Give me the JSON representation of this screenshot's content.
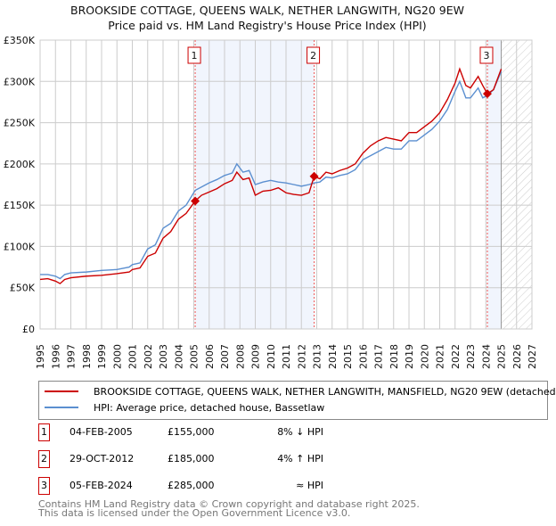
{
  "chart_data": {
    "type": "line",
    "title": "BROOKSIDE COTTAGE, QUEENS WALK, NETHER LANGWITH, NG20 9EW",
    "subtitle": "Price paid vs. HM Land Registry's House Price Index (HPI)",
    "xlim": [
      1995,
      2027
    ],
    "ylim": [
      0,
      350000
    ],
    "x_ticks": [
      "1995",
      "1996",
      "1997",
      "1998",
      "1999",
      "2000",
      "2001",
      "2002",
      "2003",
      "2004",
      "2005",
      "2006",
      "2007",
      "2008",
      "2009",
      "2010",
      "2011",
      "2012",
      "2013",
      "2014",
      "2015",
      "2016",
      "2017",
      "2018",
      "2019",
      "2020",
      "2021",
      "2022",
      "2023",
      "2024",
      "2025",
      "2026",
      "2027"
    ],
    "y_ticks": [
      {
        "v": 0,
        "label": "£0"
      },
      {
        "v": 50000,
        "label": "£50K"
      },
      {
        "v": 100000,
        "label": "£100K"
      },
      {
        "v": 150000,
        "label": "£150K"
      },
      {
        "v": 200000,
        "label": "£200K"
      },
      {
        "v": 250000,
        "label": "£250K"
      },
      {
        "v": 300000,
        "label": "£300K"
      },
      {
        "v": 350000,
        "label": "£350K"
      }
    ],
    "grid": true,
    "forecast_start": 2025.0,
    "series": [
      {
        "name": "BROOKSIDE COTTAGE, QUEENS WALK, NETHER LANGWITH, MANSFIELD, NG20 9EW (detached",
        "color": "#cc0000",
        "x": [
          1995,
          1995.5,
          1996,
          1996.3,
          1996.6,
          1997,
          1998,
          1999,
          2000,
          2000.8,
          2001,
          2001.5,
          2002,
          2002.5,
          2003,
          2003.5,
          2004,
          2004.5,
          2005.09,
          2005.5,
          2006,
          2006.5,
          2007,
          2007.5,
          2007.8,
          2008.2,
          2008.6,
          2009,
          2009.5,
          2010,
          2010.5,
          2011,
          2011.5,
          2012,
          2012.5,
          2012.83,
          2013.2,
          2013.6,
          2014,
          2014.5,
          2015,
          2015.5,
          2016,
          2016.5,
          2017,
          2017.5,
          2018,
          2018.5,
          2019,
          2019.5,
          2020,
          2020.5,
          2021,
          2021.5,
          2022,
          2022.3,
          2022.7,
          2023.0,
          2023.5,
          2023.8,
          2024.1,
          2024.5,
          2025.0
        ],
        "y": [
          60000,
          61000,
          58000,
          55000,
          60000,
          62000,
          64000,
          65000,
          67000,
          69000,
          72000,
          74000,
          88000,
          92000,
          110000,
          118000,
          133000,
          140000,
          155000,
          162000,
          166000,
          170000,
          176000,
          180000,
          190000,
          181000,
          183000,
          162000,
          167000,
          168000,
          171000,
          165000,
          163000,
          162000,
          165000,
          185000,
          182000,
          190000,
          188000,
          192000,
          195000,
          200000,
          213000,
          222000,
          228000,
          232000,
          230000,
          228000,
          238000,
          238000,
          245000,
          252000,
          262000,
          278000,
          298000,
          315000,
          295000,
          292000,
          306000,
          295000,
          285000,
          290000,
          315000
        ]
      },
      {
        "name": "HPI: Average price, detached house, Bassetlaw",
        "color": "#5b8fd0",
        "x": [
          1995,
          1995.5,
          1996,
          1996.3,
          1996.6,
          1997,
          1998,
          1999,
          2000,
          2000.8,
          2001,
          2001.5,
          2002,
          2002.5,
          2003,
          2003.5,
          2004,
          2004.5,
          2005.09,
          2005.5,
          2006,
          2006.5,
          2007,
          2007.5,
          2007.8,
          2008.2,
          2008.6,
          2009,
          2009.5,
          2010,
          2010.5,
          2011,
          2011.5,
          2012,
          2012.5,
          2012.83,
          2013.2,
          2013.6,
          2014,
          2014.5,
          2015,
          2015.5,
          2016,
          2016.5,
          2017,
          2017.5,
          2018,
          2018.5,
          2019,
          2019.5,
          2020,
          2020.5,
          2021,
          2021.5,
          2022,
          2022.3,
          2022.7,
          2023.0,
          2023.5,
          2023.8,
          2024.1,
          2024.5,
          2025.0
        ],
        "y": [
          66000,
          66000,
          64000,
          61000,
          66000,
          68000,
          69000,
          71000,
          72000,
          75000,
          78000,
          80000,
          97000,
          102000,
          122000,
          128000,
          143000,
          150000,
          168000,
          172000,
          177000,
          181000,
          186000,
          189000,
          200000,
          190000,
          192000,
          175000,
          178000,
          180000,
          178000,
          177000,
          175000,
          173000,
          175000,
          177000,
          178000,
          184000,
          183000,
          186000,
          188000,
          193000,
          205000,
          210000,
          215000,
          220000,
          218000,
          218000,
          228000,
          228000,
          235000,
          242000,
          252000,
          266000,
          288000,
          300000,
          280000,
          280000,
          292000,
          280000,
          283000,
          290000,
          312000
        ]
      }
    ],
    "transactions": [
      {
        "n": "1",
        "x": 2005.09,
        "date": "04-FEB-2005",
        "price": 155000,
        "price_label": "£155,000",
        "hpi": "8% ↓ HPI"
      },
      {
        "n": "2",
        "x": 2012.83,
        "date": "29-OCT-2012",
        "price": 185000,
        "price_label": "£185,000",
        "hpi": "4% ↑ HPI"
      },
      {
        "n": "3",
        "x": 2024.1,
        "date": "05-FEB-2024",
        "price": 285000,
        "price_label": "£285,000",
        "hpi": "≈ HPI"
      }
    ]
  },
  "footer": {
    "line1": "Contains HM Land Registry data © Crown copyright and database right 2025.",
    "line2": "This data is licensed under the Open Government Licence v3.0."
  }
}
